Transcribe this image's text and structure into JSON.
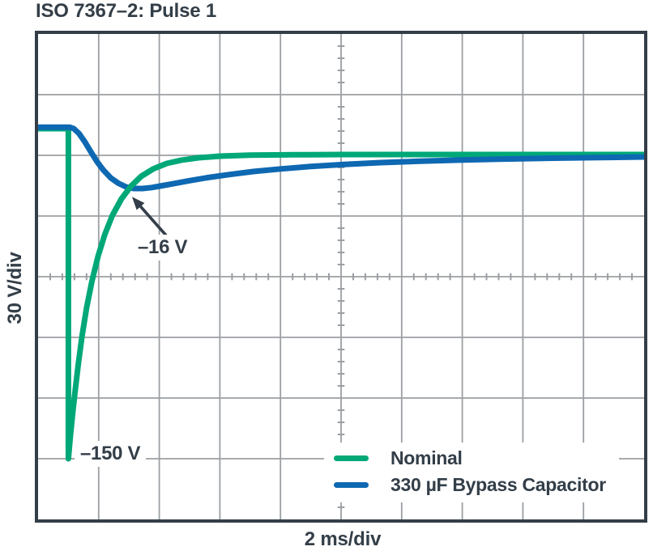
{
  "title": "ISO 7367–2: Pulse 1",
  "x_axis_label": "2 ms/div",
  "y_axis_label": "30 V/div",
  "colors": {
    "ink": "#333E48",
    "grid": "#9B9FA3",
    "background": "#FFFFFF",
    "nominal_green": "#00A878",
    "bypass_blue": "#0E68B2"
  },
  "chart_data": {
    "type": "line",
    "title": "ISO 7367–2: Pulse 1",
    "xlabel": "2 ms/div",
    "ylabel": "30 V/div",
    "x_unit": "ms",
    "y_unit": "V",
    "ms_per_div": 2,
    "volts_per_div": 30,
    "xlim": [
      0,
      20
    ],
    "ylim": [
      -180,
      60
    ],
    "grid": {
      "cols": 10,
      "rows": 8,
      "minor_per_div": 5,
      "style": "oscilloscope-graticule",
      "minor_ticks_on_center_axes": true
    },
    "legend_position": "inside-bottom-right",
    "crossover_overlay": {
      "series": 0,
      "t_range": [
        2.35,
        3.9
      ]
    },
    "series": [
      {
        "name": "Nominal",
        "color": "#00A878",
        "points": [
          [
            0,
            13.2
          ],
          [
            1.0,
            13.2
          ],
          [
            1.0,
            -150
          ],
          [
            1.06,
            -140
          ],
          [
            1.13,
            -129
          ],
          [
            1.22,
            -117
          ],
          [
            1.32,
            -104
          ],
          [
            1.45,
            -89.5
          ],
          [
            1.6,
            -75.5
          ],
          [
            1.78,
            -62
          ],
          [
            1.98,
            -49.8
          ],
          [
            2.2,
            -39.2
          ],
          [
            2.45,
            -29.8
          ],
          [
            2.75,
            -21.5
          ],
          [
            3.05,
            -15.5
          ],
          [
            3.4,
            -10.4
          ],
          [
            3.8,
            -6.7
          ],
          [
            4.25,
            -4.0
          ],
          [
            4.75,
            -2.3
          ],
          [
            5.3,
            -1.2
          ],
          [
            6.0,
            -0.4
          ],
          [
            7.0,
            0.1
          ],
          [
            8.5,
            0.3
          ],
          [
            10,
            0.4
          ],
          [
            20,
            0.4
          ]
        ]
      },
      {
        "name": "330 µF Bypass Capacitor",
        "color": "#0E68B2",
        "points": [
          [
            0,
            13.9
          ],
          [
            1.05,
            13.9
          ],
          [
            1.18,
            13.2
          ],
          [
            1.35,
            10.8
          ],
          [
            1.55,
            6.5
          ],
          [
            1.75,
            1.5
          ],
          [
            1.95,
            -3.2
          ],
          [
            2.15,
            -7.2
          ],
          [
            2.4,
            -11.2
          ],
          [
            2.65,
            -13.8
          ],
          [
            2.9,
            -15.6
          ],
          [
            3.15,
            -16.4
          ],
          [
            3.45,
            -16.4
          ],
          [
            3.75,
            -15.9
          ],
          [
            4.1,
            -15.0
          ],
          [
            4.5,
            -13.9
          ],
          [
            5.0,
            -12.5
          ],
          [
            5.6,
            -11.0
          ],
          [
            6.3,
            -9.5
          ],
          [
            7.1,
            -8.0
          ],
          [
            8.0,
            -6.7
          ],
          [
            9.0,
            -5.5
          ],
          [
            10.1,
            -4.5
          ],
          [
            11.3,
            -3.6
          ],
          [
            12.6,
            -2.9
          ],
          [
            14.0,
            -2.3
          ],
          [
            15.5,
            -1.8
          ],
          [
            17.0,
            -1.4
          ],
          [
            18.5,
            -1.1
          ],
          [
            20,
            -0.8
          ]
        ]
      }
    ],
    "annotations": [
      {
        "text": "–150 V",
        "anchor_ms_v": [
          1.45,
          -149
        ]
      },
      {
        "text": "–16 V",
        "anchor_ms_v": [
          4.2,
          -45
        ],
        "arrow_from_ms_v": [
          4.25,
          -40
        ],
        "arrow_to_ms_v": [
          3.1,
          -20.5
        ]
      }
    ]
  }
}
